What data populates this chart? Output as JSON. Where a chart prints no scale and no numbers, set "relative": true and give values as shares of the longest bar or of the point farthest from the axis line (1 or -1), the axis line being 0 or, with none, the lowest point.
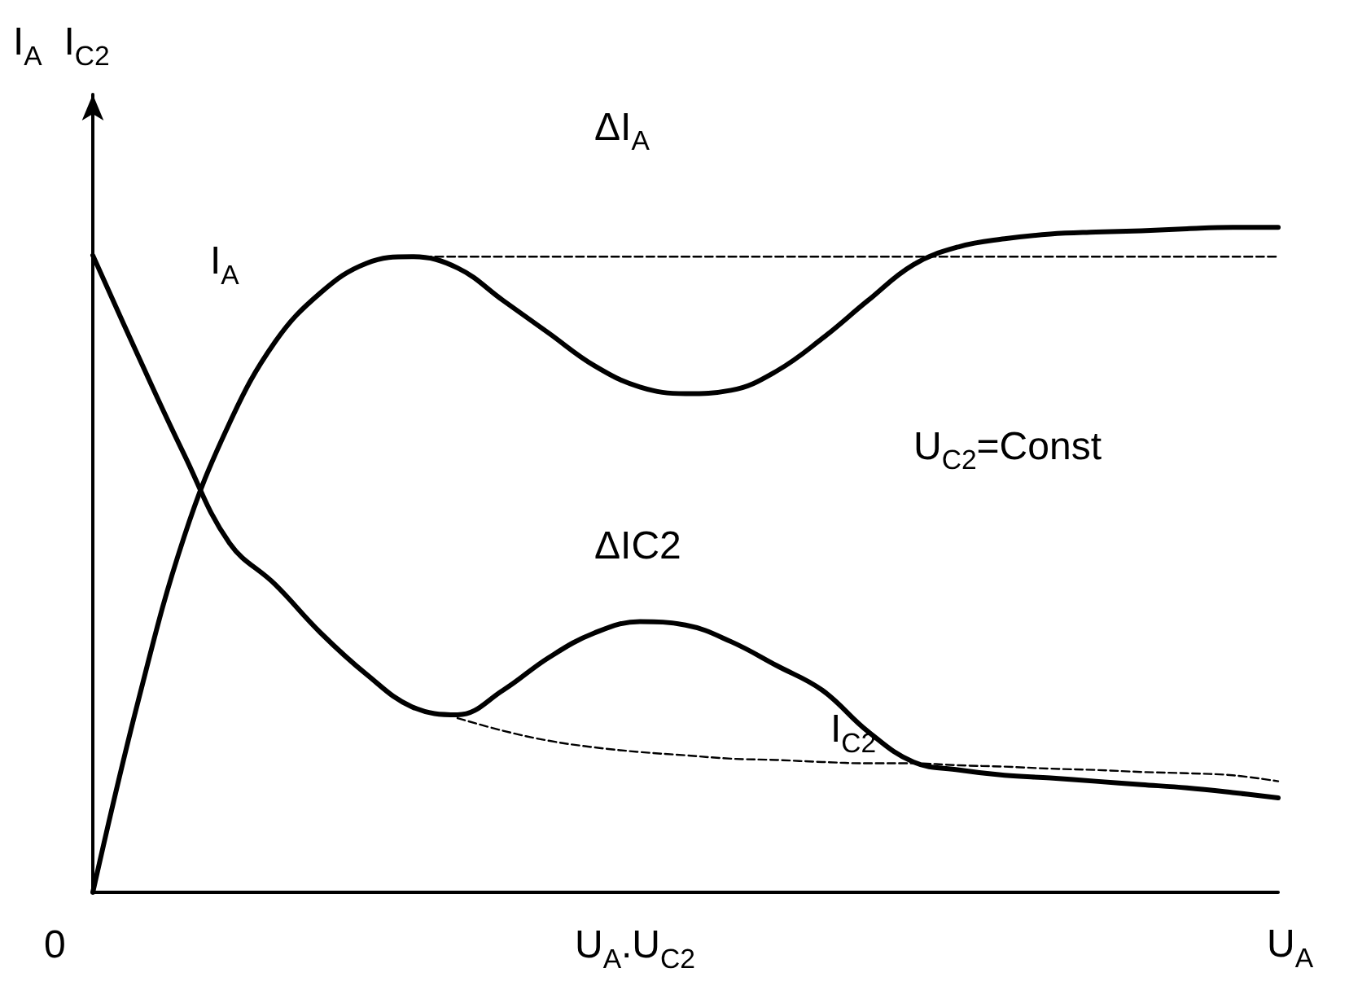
{
  "chart_data": {
    "type": "line",
    "relative": true,
    "ylabel": "I$_{A}$  I$_{C2}$",
    "xlabel": "U$_{A}$",
    "legend": false,
    "grid": false,
    "marker": "none",
    "categories": [
      null,
      null,
      null,
      null,
      null,
      null,
      null,
      null,
      null,
      null,
      null,
      null,
      null,
      null,
      null,
      null,
      null,
      null,
      null,
      null,
      null,
      null,
      null,
      null,
      null,
      null,
      null
    ],
    "series": [
      {
        "name": "I$_{A}$",
        "color": "#000000",
        "line_style": "solid",
        "values": [
          0,
          0.289,
          0.534,
          0.706,
          0.828,
          0.902,
          0.946,
          0.956,
          0.939,
          0.89,
          0.841,
          0.792,
          0.76,
          0.75,
          0.755,
          0.784,
          0.833,
          0.89,
          0.944,
          0.971,
          0.983,
          0.99,
          0.993,
          0.995,
          0.998,
          1,
          1
        ]
      },
      {
        "name": "I$_{C2}$",
        "color": "#000000",
        "line_style": "solid",
        "values": [
          0.958,
          0.806,
          0.659,
          0.525,
          0.463,
          0.39,
          0.328,
          0.279,
          0.267,
          0.304,
          0.353,
          0.39,
          0.407,
          0.402,
          0.377,
          0.341,
          0.304,
          0.242,
          0.196,
          0.184,
          0.176,
          0.172,
          0.167,
          0.162,
          0.157,
          0.15,
          0.142
        ]
      },
      {
        "color": "#000000",
        "line_style": "dashed",
        "values": [
          null,
          null,
          null,
          null,
          null,
          null,
          null,
          0.956,
          0.956,
          0.956,
          0.956,
          0.956,
          0.956,
          0.956,
          0.956,
          0.956,
          0.956,
          0.956,
          0.956,
          0.956,
          0.956,
          0.956,
          0.956,
          0.956,
          0.956,
          0.956,
          0.956
        ]
      },
      {
        "color": "#000000",
        "line_style": "dashed",
        "values": [
          null,
          null,
          null,
          null,
          null,
          null,
          null,
          null,
          0.262,
          0.243,
          0.228,
          0.218,
          0.211,
          0.206,
          0.201,
          0.199,
          0.196,
          0.194,
          0.194,
          0.191,
          0.189,
          0.186,
          0.184,
          0.181,
          0.179,
          0.176,
          0.167
        ]
      }
    ],
    "annotations": [
      "0",
      "ΔI$_{A}$",
      "ΔIC2",
      "U$_{C2}$=Const",
      "U$_{A}$.U$_{C2}$"
    ]
  }
}
